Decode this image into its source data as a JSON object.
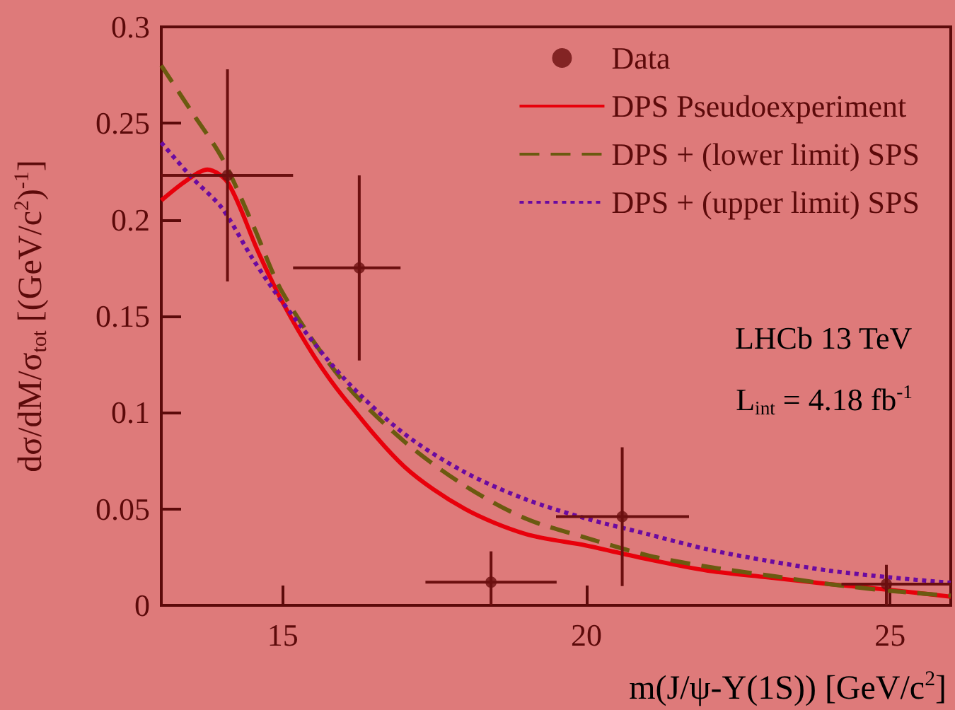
{
  "chart_data": {
    "type": "line",
    "xlabel": "m(J/ψ-Υ(1S)) [GeV/c$^{2}$]",
    "ylabel": "dσ/dM/σ$_{tot}$ [(GeV/c$^{2}$)$^{-1}$]",
    "xlim": [
      13,
      26
    ],
    "xticks": [
      15,
      20,
      25
    ],
    "ylim": [
      0,
      0.3
    ],
    "yticks": [
      0,
      0.05,
      0.1,
      0.15,
      0.2,
      0.25,
      0.3
    ],
    "grid": false,
    "legend": "top right",
    "annotations": [
      "LHCb 13 TeV",
      "L$_{int}$ = 4.18 fb$^{-1}$"
    ],
    "series": [
      {
        "name": "Data",
        "type": "scatter",
        "marker": "circle",
        "color": "#6b0f0f",
        "x": [
          14.09,
          16.26,
          18.43,
          20.59,
          24.94
        ],
        "values": [
          0.223,
          0.175,
          0.012,
          0.046,
          0.011
        ],
        "errors": [
          [
            0.168,
            0.278
          ],
          [
            0.127,
            0.223
          ],
          [
            0,
            0.028
          ],
          [
            0.01,
            0.082
          ],
          [
            0,
            0.021
          ]
        ],
        "xerrors": [
          [
            13,
            15.17
          ],
          [
            15.17,
            16.94
          ],
          [
            17.35,
            19.51
          ],
          [
            19.5,
            21.69
          ],
          [
            24.2,
            26
          ]
        ]
      },
      {
        "name": "DPS Pseudoexperiment",
        "marker": "none",
        "line_style": "solid",
        "color": "#e8000b",
        "x": [
          13,
          13.4,
          13.76,
          14.1,
          14.6,
          15,
          15.5,
          16,
          17,
          18,
          19,
          20,
          21,
          22,
          23,
          24,
          25,
          26
        ],
        "values": [
          0.21,
          0.22,
          0.226,
          0.219,
          0.183,
          0.157,
          0.13,
          0.108,
          0.072,
          0.05,
          0.037,
          0.031,
          0.024,
          0.018,
          0.0145,
          0.011,
          0.008,
          0.0045
        ]
      },
      {
        "name": "DPS + (lower limit) SPS",
        "marker": "none",
        "line_style": "dashed",
        "color": "#6b5a10",
        "x": [
          13,
          13.5,
          14,
          14.5,
          15,
          16,
          17,
          18,
          19,
          20,
          21,
          22,
          23,
          24,
          25,
          26
        ],
        "values": [
          0.28,
          0.256,
          0.232,
          0.198,
          0.162,
          0.116,
          0.085,
          0.062,
          0.045,
          0.035,
          0.026,
          0.02,
          0.0155,
          0.011,
          0.0075,
          0.005
        ]
      },
      {
        "name": "DPS + (upper limit) SPS",
        "marker": "none",
        "line_style": "dotted",
        "color": "#6a0aa0",
        "x": [
          13,
          13.5,
          14,
          14.5,
          15,
          16,
          17,
          18,
          19,
          20,
          21,
          22,
          23,
          24,
          25,
          26
        ],
        "values": [
          0.24,
          0.222,
          0.206,
          0.18,
          0.157,
          0.118,
          0.089,
          0.069,
          0.055,
          0.045,
          0.037,
          0.029,
          0.023,
          0.018,
          0.0145,
          0.0117
        ]
      }
    ]
  }
}
